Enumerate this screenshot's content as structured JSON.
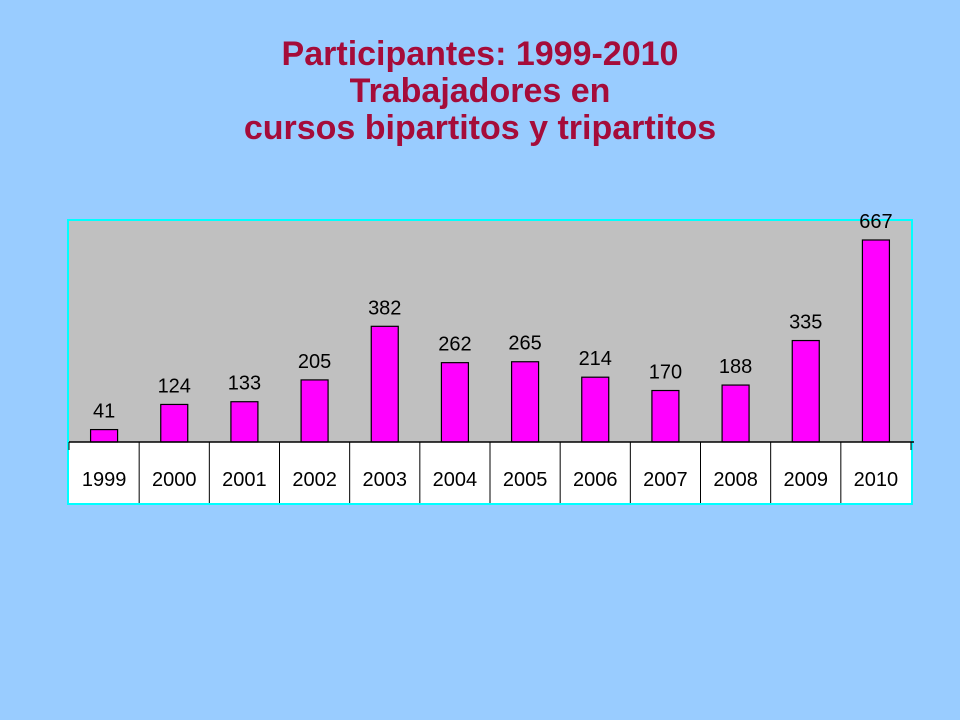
{
  "title": {
    "line1": "Participantes: 1999-2010",
    "line2": "Trabajadores en",
    "line3": "cursos bipartitos y tripartitos"
  },
  "colors": {
    "background": "#99ccff",
    "title": "#a50c3a",
    "plot_area": "#c0c0c0",
    "bar": "#ff00ff",
    "table_bg": "#ffffff",
    "border": "#00ffff"
  },
  "chart_data": {
    "type": "bar",
    "categories": [
      "1999",
      "2000",
      "2001",
      "2002",
      "2003",
      "2004",
      "2005",
      "2006",
      "2007",
      "2008",
      "2009",
      "2010"
    ],
    "values": [
      41,
      124,
      133,
      205,
      382,
      262,
      265,
      214,
      170,
      188,
      335,
      667
    ],
    "data_labels": [
      "41",
      "124",
      "133",
      "205",
      "382",
      "262",
      "265",
      "214",
      "170",
      "188",
      "335",
      "667"
    ],
    "ylim": [
      0,
      700
    ],
    "grid": false,
    "legend": "none",
    "category_labels_in_table": true
  }
}
